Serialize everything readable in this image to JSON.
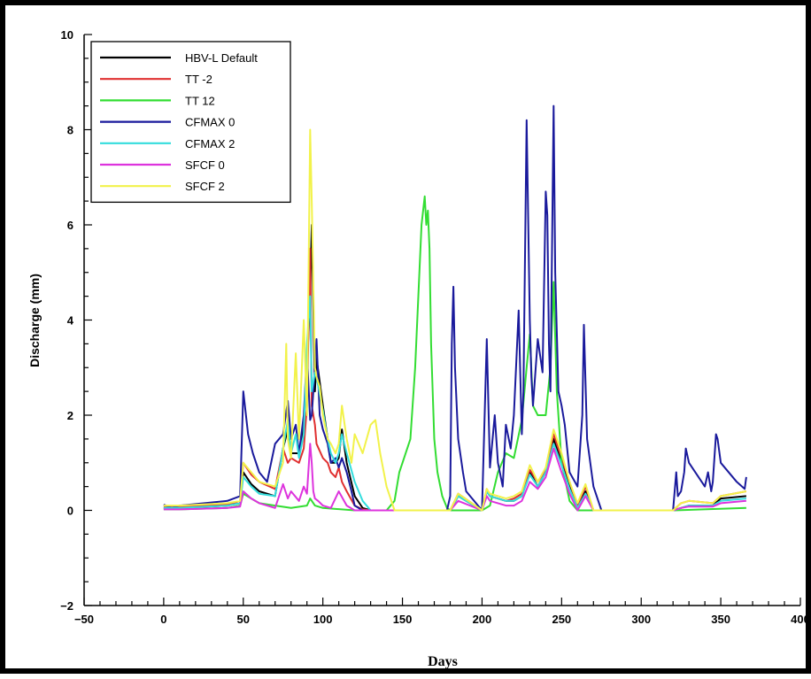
{
  "chart_data": {
    "type": "line",
    "title": "",
    "xlabel": "Days",
    "ylabel": "Discharge (mm)",
    "xlim": [
      -50,
      400
    ],
    "ylim": [
      -2,
      10
    ],
    "x_ticks": [
      -50,
      0,
      50,
      100,
      150,
      200,
      250,
      300,
      350,
      400
    ],
    "y_ticks": [
      -2,
      0,
      2,
      4,
      6,
      8,
      10
    ],
    "x_tick_labels": [
      "−50",
      "0",
      "50",
      "100",
      "150",
      "200",
      "250",
      "300",
      "350",
      "400"
    ],
    "y_tick_labels": [
      "−2",
      "0",
      "2",
      "4",
      "6",
      "8",
      "10"
    ],
    "legend_position": "top-left",
    "grid": false,
    "series": [
      {
        "name": "HBV-L Default",
        "color": "#000000",
        "x": [
          0,
          10,
          40,
          48,
          50,
          55,
          60,
          70,
          75,
          78,
          80,
          85,
          88,
          90,
          92,
          93,
          95,
          96,
          100,
          103,
          105,
          108,
          110,
          112,
          115,
          120,
          125,
          130,
          180,
          185,
          200,
          203,
          205,
          215,
          220,
          225,
          230,
          235,
          240,
          245,
          250,
          255,
          260,
          265,
          270,
          320,
          325,
          330,
          345,
          350,
          366
        ],
        "y": [
          0.05,
          0.05,
          0.1,
          0.15,
          0.8,
          0.55,
          0.4,
          0.3,
          1.3,
          1.7,
          1.2,
          1.2,
          1.8,
          3.0,
          4.5,
          6.0,
          2.5,
          3.2,
          2.2,
          1.5,
          1.0,
          1.0,
          1.1,
          1.7,
          1.0,
          0.3,
          0.05,
          0,
          0,
          0.3,
          0,
          0.4,
          0.3,
          0.2,
          0.2,
          0.3,
          0.8,
          0.5,
          0.8,
          1.5,
          1.0,
          0.5,
          0.05,
          0.4,
          0,
          0,
          0.05,
          0.1,
          0.1,
          0.25,
          0.3
        ]
      },
      {
        "name": "TT -2",
        "color": "#e03030",
        "x": [
          0,
          10,
          40,
          48,
          50,
          55,
          60,
          70,
          75,
          78,
          80,
          85,
          88,
          90,
          92,
          93,
          95,
          96,
          100,
          103,
          105,
          108,
          110,
          112,
          115,
          120,
          125,
          130,
          180,
          185,
          200,
          203,
          205,
          215,
          220,
          225,
          230,
          235,
          240,
          245,
          250,
          255,
          260,
          265,
          270,
          320,
          325,
          330,
          345,
          350,
          366
        ],
        "y": [
          0.08,
          0.08,
          0.12,
          0.2,
          1.0,
          0.75,
          0.6,
          0.45,
          1.3,
          1.0,
          1.1,
          1.0,
          1.3,
          2.2,
          5.5,
          2.2,
          1.8,
          1.4,
          1.1,
          1.0,
          0.8,
          0.7,
          0.9,
          0.6,
          0.4,
          0.1,
          0.02,
          0,
          0,
          0.35,
          0,
          0.45,
          0.3,
          0.2,
          0.25,
          0.35,
          0.85,
          0.6,
          0.85,
          1.6,
          1.1,
          0.6,
          0.1,
          0.5,
          0,
          0,
          0.15,
          0.2,
          0.15,
          0.3,
          0.4
        ]
      },
      {
        "name": "TT 12",
        "color": "#33dd33",
        "x": [
          0,
          10,
          40,
          48,
          50,
          55,
          60,
          70,
          80,
          90,
          92,
          95,
          100,
          120,
          140,
          145,
          148,
          150,
          155,
          158,
          160,
          162,
          164,
          165,
          166,
          167,
          168,
          170,
          172,
          175,
          178,
          180,
          185,
          200,
          205,
          210,
          215,
          220,
          225,
          228,
          230,
          232,
          235,
          240,
          243,
          245,
          247,
          250,
          255,
          260,
          320,
          366
        ],
        "y": [
          0.02,
          0.02,
          0.05,
          0.1,
          0.35,
          0.25,
          0.15,
          0.1,
          0.05,
          0.1,
          0.25,
          0.1,
          0.05,
          0,
          0,
          0.2,
          0.8,
          1.0,
          1.5,
          3.0,
          4.5,
          6.0,
          6.6,
          6.0,
          6.3,
          5.5,
          3.5,
          1.5,
          0.8,
          0.3,
          0.05,
          0,
          0,
          0,
          0.1,
          0.8,
          1.2,
          1.1,
          1.9,
          3.0,
          3.7,
          2.2,
          2.0,
          2.0,
          3.0,
          4.8,
          2.5,
          1.0,
          0.2,
          0,
          0,
          0.05
        ]
      },
      {
        "name": "CFMAX 0",
        "color": "#1a1a9c",
        "x": [
          0,
          5,
          10,
          40,
          48,
          50,
          53,
          56,
          60,
          65,
          70,
          75,
          78,
          80,
          83,
          85,
          88,
          90,
          92,
          93,
          95,
          96,
          98,
          100,
          103,
          105,
          108,
          110,
          112,
          115,
          118,
          120,
          125,
          178,
          180,
          181,
          182,
          183,
          185,
          188,
          190,
          200,
          203,
          205,
          208,
          210,
          213,
          215,
          218,
          220,
          223,
          225,
          226,
          228,
          230,
          231,
          232,
          235,
          238,
          240,
          241,
          242,
          243,
          245,
          246,
          248,
          250,
          252,
          255,
          260,
          263,
          264,
          266,
          270,
          275,
          320,
          322,
          323,
          325,
          327,
          328,
          330,
          340,
          342,
          344,
          345,
          347,
          348,
          350,
          360,
          365,
          366
        ],
        "y": [
          0.12,
          0.05,
          0.1,
          0.2,
          0.3,
          2.5,
          1.6,
          1.2,
          0.8,
          0.6,
          1.4,
          1.6,
          2.3,
          1.5,
          1.8,
          1.2,
          2.0,
          3.3,
          1.9,
          2.0,
          3.0,
          3.6,
          2.0,
          1.7,
          1.4,
          1.0,
          1.1,
          0.9,
          1.1,
          0.8,
          0.4,
          0.1,
          0,
          0,
          0.3,
          3.5,
          4.7,
          3.0,
          1.5,
          0.8,
          0.4,
          0,
          3.6,
          0.9,
          2.0,
          1.0,
          0.5,
          1.8,
          1.3,
          2.0,
          4.2,
          1.6,
          2.5,
          8.2,
          4.0,
          2.8,
          2.2,
          3.6,
          2.9,
          6.7,
          6.2,
          3.5,
          2.5,
          8.5,
          5.0,
          2.5,
          2.2,
          1.8,
          0.8,
          0.5,
          2.0,
          3.9,
          1.5,
          0.5,
          0,
          0,
          0.8,
          0.3,
          0.4,
          0.8,
          1.3,
          1.0,
          0.5,
          0.8,
          0.4,
          0.6,
          1.6,
          1.5,
          1.0,
          0.6,
          0.45,
          0.7
        ]
      },
      {
        "name": "CFMAX 2",
        "color": "#33dddd",
        "x": [
          0,
          10,
          40,
          48,
          50,
          55,
          60,
          70,
          75,
          78,
          80,
          83,
          85,
          88,
          90,
          92,
          93,
          95,
          96,
          100,
          103,
          105,
          108,
          110,
          112,
          115,
          120,
          125,
          130,
          180,
          185,
          200,
          203,
          205,
          215,
          220,
          225,
          230,
          235,
          240,
          245,
          250,
          255,
          260,
          265,
          270,
          320,
          325,
          330,
          345,
          350,
          366
        ],
        "y": [
          0.05,
          0.05,
          0.1,
          0.15,
          0.7,
          0.5,
          0.35,
          0.3,
          1.3,
          1.9,
          1.2,
          1.6,
          1.1,
          1.6,
          3.5,
          4.5,
          2.5,
          2.9,
          2.8,
          2.1,
          1.5,
          1.2,
          1.0,
          1.2,
          1.6,
          1.2,
          0.6,
          0.2,
          0,
          0,
          0.3,
          0,
          0.4,
          0.3,
          0.2,
          0.2,
          0.3,
          0.75,
          0.5,
          0.8,
          1.4,
          0.95,
          0.45,
          0.05,
          0.35,
          0,
          0,
          0.05,
          0.1,
          0.1,
          0.2,
          0.25
        ]
      },
      {
        "name": "SFCF 0",
        "color": "#dd33dd",
        "x": [
          0,
          10,
          40,
          48,
          50,
          55,
          60,
          70,
          75,
          78,
          80,
          85,
          88,
          90,
          92,
          93,
          94,
          95,
          97,
          100,
          105,
          110,
          115,
          120,
          125,
          130,
          180,
          185,
          200,
          203,
          205,
          215,
          220,
          225,
          230,
          235,
          240,
          245,
          250,
          255,
          260,
          265,
          270,
          320,
          325,
          330,
          345,
          350,
          366
        ],
        "y": [
          0.02,
          0.02,
          0.05,
          0.08,
          0.4,
          0.25,
          0.15,
          0.05,
          0.55,
          0.25,
          0.4,
          0.2,
          0.5,
          0.35,
          1.4,
          1.0,
          0.4,
          0.25,
          0.2,
          0.1,
          0.05,
          0.4,
          0.1,
          0,
          0,
          0,
          0,
          0.2,
          0,
          0.3,
          0.2,
          0.1,
          0.1,
          0.2,
          0.6,
          0.45,
          0.7,
          1.3,
          0.8,
          0.35,
          0,
          0.3,
          0,
          0,
          0.05,
          0.08,
          0.08,
          0.15,
          0.2
        ]
      },
      {
        "name": "SFCF 2",
        "color": "#f2f24a",
        "x": [
          0,
          10,
          40,
          48,
          50,
          55,
          60,
          70,
          75,
          77,
          78,
          80,
          83,
          85,
          88,
          90,
          92,
          93,
          95,
          96,
          98,
          100,
          103,
          105,
          108,
          110,
          112,
          115,
          118,
          120,
          125,
          130,
          133,
          136,
          140,
          145,
          180,
          185,
          200,
          203,
          205,
          215,
          220,
          225,
          230,
          235,
          240,
          245,
          250,
          255,
          260,
          265,
          270,
          320,
          325,
          330,
          345,
          350,
          366
        ],
        "y": [
          0.1,
          0.1,
          0.15,
          0.2,
          1.0,
          0.8,
          0.6,
          0.5,
          1.0,
          3.5,
          1.5,
          1.1,
          3.3,
          1.5,
          4.0,
          2.0,
          8.0,
          6.5,
          3.0,
          2.8,
          2.6,
          2.0,
          1.5,
          1.4,
          1.2,
          1.4,
          2.2,
          1.5,
          1.0,
          1.6,
          1.2,
          1.8,
          1.9,
          1.2,
          0.5,
          0,
          0,
          0.35,
          0,
          0.45,
          0.35,
          0.25,
          0.3,
          0.4,
          0.95,
          0.6,
          0.9,
          1.7,
          1.2,
          0.6,
          0.15,
          0.55,
          0,
          0,
          0.15,
          0.2,
          0.15,
          0.3,
          0.4
        ]
      }
    ]
  }
}
